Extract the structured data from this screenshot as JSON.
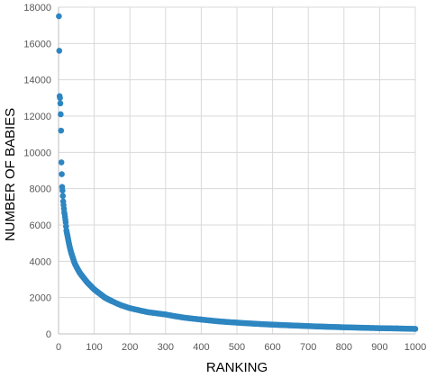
{
  "chart_data": {
    "type": "scatter",
    "title": "",
    "xlabel": "RANKING",
    "ylabel": "NUMBER OF BABIES",
    "xlim": [
      0,
      1000
    ],
    "ylim": [
      0,
      18000
    ],
    "xticks": [
      0,
      100,
      200,
      300,
      400,
      500,
      600,
      700,
      800,
      900,
      1000
    ],
    "yticks": [
      0,
      2000,
      4000,
      6000,
      8000,
      10000,
      12000,
      14000,
      16000,
      18000
    ],
    "grid": true,
    "legend": "none",
    "marker_color": "#2e86c1",
    "points_summary": "1000 points, one per rank; values follow a steep power-law decay",
    "series": [
      {
        "x": [
          1,
          2,
          3,
          4,
          5,
          6,
          7,
          8,
          9,
          10,
          11,
          12,
          13,
          14,
          15,
          16,
          17,
          18,
          19,
          20,
          22,
          24,
          26,
          28,
          30,
          35,
          40,
          45,
          50,
          60,
          70,
          80,
          90,
          100,
          110,
          120,
          130,
          150,
          175,
          200,
          250,
          300,
          350,
          400,
          450,
          500,
          550,
          600,
          650,
          700,
          750,
          800,
          850,
          900,
          950,
          1000
        ],
        "y": [
          17500,
          15600,
          13100,
          13000,
          12700,
          12100,
          11200,
          9450,
          8800,
          8100,
          7900,
          7600,
          7300,
          7100,
          6900,
          6700,
          6600,
          6450,
          6300,
          6150,
          5700,
          5500,
          5300,
          5100,
          4900,
          4500,
          4200,
          3900,
          3700,
          3350,
          3100,
          2850,
          2650,
          2450,
          2300,
          2150,
          2000,
          1800,
          1580,
          1420,
          1200,
          1070,
          900,
          790,
          690,
          620,
          560,
          510,
          470,
          430,
          395,
          365,
          340,
          315,
          300,
          275
        ]
      }
    ]
  }
}
